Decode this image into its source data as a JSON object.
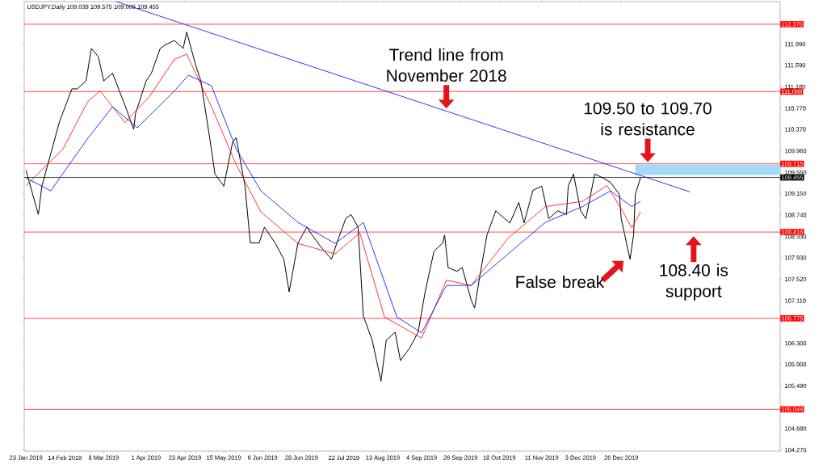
{
  "chart_data": {
    "type": "line",
    "title": "USDJPY,Daily 109.039 109.575 109.006 109.455",
    "series": [
      {
        "color": "#000000",
        "x": [
          "2019-01-23",
          "2019-01-30",
          "2019-02-01",
          "2019-02-11",
          "2019-02-18",
          "2019-02-21",
          "2019-02-26",
          "2019-03-01",
          "2019-03-05",
          "2019-03-08",
          "2019-03-13",
          "2019-03-20",
          "2019-03-25",
          "2019-03-26",
          "2019-04-01",
          "2019-04-04",
          "2019-04-09",
          "2019-04-12",
          "2019-04-17",
          "2019-04-22",
          "2019-04-24",
          "2019-04-29",
          "2019-05-02",
          "2019-05-07",
          "2019-05-10",
          "2019-05-15",
          "2019-05-20",
          "2019-05-22",
          "2019-05-27",
          "2019-05-30",
          "2019-06-04",
          "2019-06-07",
          "2019-06-13",
          "2019-06-18",
          "2019-06-21",
          "2019-06-26",
          "2019-07-01",
          "2019-07-04",
          "2019-07-09",
          "2019-07-15",
          "2019-07-18",
          "2019-07-23",
          "2019-07-26",
          "2019-07-30",
          "2019-08-02",
          "2019-08-07",
          "2019-08-12",
          "2019-08-15",
          "2019-08-20",
          "2019-08-23",
          "2019-08-28",
          "2019-09-02",
          "2019-09-06",
          "2019-09-11",
          "2019-09-16",
          "2019-09-17",
          "2019-09-19",
          "2019-09-24",
          "2019-09-27",
          "2019-10-02",
          "2019-10-04",
          "2019-10-07",
          "2019-10-11",
          "2019-10-16",
          "2019-10-21",
          "2019-10-24",
          "2019-10-29",
          "2019-11-01",
          "2019-11-06",
          "2019-11-11",
          "2019-11-15",
          "2019-11-20",
          "2019-11-25",
          "2019-11-26",
          "2019-11-29",
          "2019-12-03",
          "2019-12-06",
          "2019-12-11",
          "2019-12-16",
          "2019-12-20",
          "2019-12-25",
          "2019-12-26",
          "2019-12-31",
          "2020-01-02",
          "2020-01-03",
          "2020-01-06"
        ],
        "values": [
          109.59,
          108.75,
          109.29,
          110.52,
          111.14,
          111.14,
          111.29,
          111.91,
          111.75,
          111.29,
          111.44,
          110.83,
          110.37,
          110.67,
          111.29,
          111.44,
          111.91,
          111.98,
          112.06,
          111.91,
          112.22,
          111.6,
          111.29,
          110.21,
          109.52,
          109.29,
          110.13,
          110.21,
          109.29,
          108.21,
          108.21,
          108.51,
          108.21,
          107.9,
          107.28,
          108.21,
          108.51,
          108.36,
          108.13,
          107.9,
          108.21,
          108.67,
          108.75,
          108.51,
          106.82,
          106.36,
          105.58,
          106.36,
          106.51,
          105.97,
          106.2,
          106.51,
          107.28,
          108.05,
          108.21,
          108.36,
          107.74,
          107.67,
          107.74,
          107.13,
          106.97,
          107.59,
          108.36,
          108.82,
          108.67,
          108.59,
          108.98,
          108.59,
          109.21,
          109.29,
          108.67,
          108.82,
          108.75,
          109.29,
          109.52,
          108.82,
          108.67,
          109.52,
          109.44,
          109.36,
          109.13,
          108.67,
          107.9,
          108.36,
          109.13,
          109.46
        ]
      },
      {
        "color": "#ff0000",
        "x": [
          "2019-01-23",
          "2019-02-13",
          "2019-02-27",
          "2019-03-06",
          "2019-03-20",
          "2019-04-03",
          "2019-04-17",
          "2019-04-24",
          "2019-05-08",
          "2019-05-22",
          "2019-06-05",
          "2019-06-26",
          "2019-07-17",
          "2019-07-31",
          "2019-08-14",
          "2019-09-04",
          "2019-09-18",
          "2019-10-02",
          "2019-10-23",
          "2019-11-13",
          "2019-12-04",
          "2019-12-18",
          "2019-12-27",
          "2020-01-01",
          "2020-01-06"
        ],
        "values": [
          109.3,
          110.0,
          110.9,
          111.1,
          110.5,
          111.0,
          111.7,
          111.8,
          110.8,
          109.7,
          108.8,
          108.2,
          108.0,
          108.4,
          106.8,
          106.4,
          107.5,
          107.4,
          108.3,
          108.9,
          109.0,
          109.3,
          108.8,
          108.5,
          108.8
        ]
      },
      {
        "color": "#0000ff",
        "x": [
          "2019-01-23",
          "2019-02-06",
          "2019-02-27",
          "2019-03-13",
          "2019-03-27",
          "2019-04-17",
          "2019-04-25",
          "2019-05-08",
          "2019-05-22",
          "2019-06-05",
          "2019-06-26",
          "2019-07-17",
          "2019-08-02",
          "2019-08-21",
          "2019-09-04",
          "2019-09-18",
          "2019-10-02",
          "2019-10-23",
          "2019-11-13",
          "2019-12-04",
          "2019-12-20",
          "2020-01-01",
          "2020-01-06"
        ],
        "values": [
          109.45,
          109.2,
          110.2,
          110.8,
          110.4,
          111.1,
          111.4,
          111.2,
          110.0,
          109.2,
          108.6,
          108.2,
          108.6,
          106.8,
          106.5,
          107.4,
          107.4,
          108.0,
          108.6,
          108.9,
          109.2,
          108.9,
          109.0
        ]
      },
      {
        "color": "#0000ff",
        "x": [
          "2019-03-15",
          "2020-02-03"
        ],
        "values": [
          112.8,
          109.18
        ]
      }
    ],
    "xlim": [
      "2019-01-22",
      "2020-03-25"
    ],
    "ylim": [
      104.25,
      112.8
    ],
    "xticks": [
      {
        "value": "2019-01-23",
        "label": "23 Jan 2019"
      },
      {
        "value": "2019-02-14",
        "label": "14 Feb 2019"
      },
      {
        "value": "2019-03-08",
        "label": "8 Mar 2019"
      },
      {
        "value": "2019-04-01",
        "label": "1 Apr 2019"
      },
      {
        "value": "2019-04-23",
        "label": "23 Apr 2019"
      },
      {
        "value": "2019-05-15",
        "label": "15 May 2019"
      },
      {
        "value": "2019-06-06",
        "label": "6 Jun 2019"
      },
      {
        "value": "2019-06-28",
        "label": "28 Jun 2019"
      },
      {
        "value": "2019-07-22",
        "label": "22 Jul 2019"
      },
      {
        "value": "2019-08-13",
        "label": "13 Aug 2019"
      },
      {
        "value": "2019-09-04",
        "label": "4 Sep 2019"
      },
      {
        "value": "2019-09-26",
        "label": "26 Sep 2019"
      },
      {
        "value": "2019-10-18",
        "label": "18 Oct 2019"
      },
      {
        "value": "2019-11-11",
        "label": "11 Nov 2019"
      },
      {
        "value": "2019-12-03",
        "label": "3 Dec 2019"
      },
      {
        "value": "2019-12-26",
        "label": "26 Dec 2019"
      }
    ],
    "yticks": [
      {
        "value": 104.27,
        "label": "104.270"
      },
      {
        "value": 104.68,
        "label": "104.680"
      },
      {
        "value": 105.49,
        "label": "105.490"
      },
      {
        "value": 105.9,
        "label": "105.900"
      },
      {
        "value": 106.3,
        "label": "106.300"
      },
      {
        "value": 106.71,
        "label": null
      },
      {
        "value": 107.11,
        "label": "107.110"
      },
      {
        "value": 107.52,
        "label": "107.520"
      },
      {
        "value": 107.93,
        "label": "107.930"
      },
      {
        "value": 108.33,
        "label": "108.330"
      },
      {
        "value": 108.74,
        "label": "108.740"
      },
      {
        "value": 109.15,
        "label": "109.150"
      },
      {
        "value": 109.55,
        "label": "109.550"
      },
      {
        "value": 109.96,
        "label": "109.960"
      },
      {
        "value": 110.37,
        "label": "110.370"
      },
      {
        "value": 110.77,
        "label": "110.770"
      },
      {
        "value": 111.18,
        "label": "111.180"
      },
      {
        "value": 111.59,
        "label": "111.590"
      },
      {
        "value": 111.99,
        "label": "111.990"
      }
    ],
    "ref_lines": [
      {
        "axis": "y",
        "value": 112.37,
        "label": "112.370",
        "color": "#ff0000"
      },
      {
        "axis": "y",
        "value": 111.088,
        "label": "111.088",
        "color": "#ff0000"
      },
      {
        "axis": "y",
        "value": 109.715,
        "label": "109.715",
        "color": "#ff0000"
      },
      {
        "axis": "y",
        "value": 108.416,
        "label": "108.416",
        "color": "#ff0000"
      },
      {
        "axis": "y",
        "value": 106.775,
        "label": "106.775",
        "color": "#ff0000"
      },
      {
        "axis": "y",
        "value": 105.044,
        "label": "105.044",
        "color": "#ff0000"
      },
      {
        "axis": "y",
        "value": 109.455,
        "label": "109.455",
        "color": "#000000"
      }
    ],
    "bands": [
      {
        "axis": "y",
        "from": 109.5,
        "to": 109.7,
        "color": "#a8d8f8"
      }
    ],
    "annotations": [
      {
        "text": "Trend line from November 2018",
        "x": "2019-09-18",
        "y": 110.72
      },
      {
        "text": "109.50 to 109.70 is resistance",
        "x": "2020-01-10",
        "y": 109.7
      },
      {
        "text": "False break",
        "x": "2019-12-31",
        "y": 107.9
      },
      {
        "text": "108.40 is support",
        "x": "2020-02-05",
        "y": 108.4
      }
    ]
  }
}
